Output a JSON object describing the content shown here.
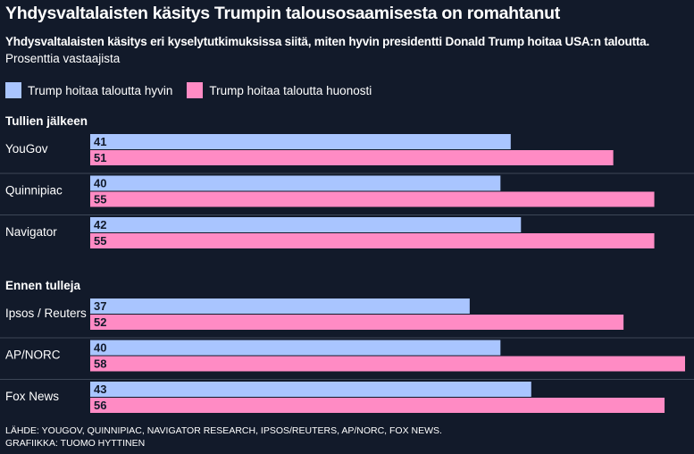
{
  "title": "Yhdysvaltalaisten käsitys Trumpin talousosaamisesta on romahtanut",
  "subtitle": "Yhdysvaltalaisten käsitys eri kyselytutkimuksissa siitä, miten hyvin presidentti Donald Trump hoitaa USA:n taloutta.",
  "unit": "Prosenttia vastaajista",
  "footer": {
    "source": "LÄHDE: YOUGOV, QUINNIPIAC, NAVIGATOR RESEARCH, IPSOS/REUTERS, AP/NORC, FOX NEWS.",
    "credit": "GRAFIIKKA: TUOMO HYTTINEN"
  },
  "colors": {
    "background": "#121a2a",
    "good": "#a9c5ff",
    "bad": "#ff8bc4",
    "divider": "#3d4656"
  },
  "chart_data": {
    "type": "bar",
    "orientation": "horizontal",
    "series": [
      {
        "name": "Trump hoitaa taloutta hyvin",
        "color": "#a9c5ff"
      },
      {
        "name": "Trump hoitaa taloutta huonosti",
        "color": "#ff8bc4"
      }
    ],
    "groups": [
      {
        "label": "Tullien jälkeen",
        "polls": [
          {
            "name": "YouGov",
            "values": [
              41,
              51
            ]
          },
          {
            "name": "Quinnipiac",
            "values": [
              40,
              55
            ]
          },
          {
            "name": "Navigator",
            "values": [
              42,
              55
            ]
          }
        ]
      },
      {
        "label": "Ennen tulleja",
        "polls": [
          {
            "name": "Ipsos / Reuters",
            "values": [
              37,
              52
            ]
          },
          {
            "name": "AP/NORC",
            "values": [
              40,
              58
            ]
          },
          {
            "name": "Fox News",
            "values": [
              43,
              56
            ]
          }
        ]
      }
    ],
    "xlim": [
      0,
      58
    ],
    "grid": false,
    "legend_position": "top-left",
    "data_labels": true
  }
}
